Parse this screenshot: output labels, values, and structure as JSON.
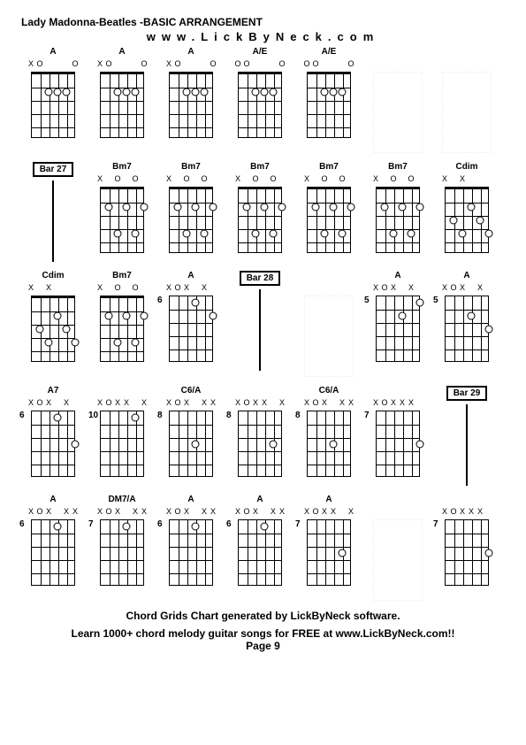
{
  "title": "Lady Madonna-Beatles -BASIC ARRANGEMENT",
  "website": "www.LickByNeck.com",
  "footer1": "Chord Grids Chart generated by LickByNeck software.",
  "footer2": "Learn 1000+ chord melody guitar songs for FREE at www.LickByNeck.com!!",
  "page": "Page 9",
  "cells": [
    {
      "type": "chord",
      "label": "A",
      "openNut": true,
      "fretNum": "",
      "nutMarks": [
        "X",
        "O",
        "",
        "",
        "",
        "O"
      ],
      "dots": [
        [
          2,
          2
        ],
        [
          3,
          2
        ],
        [
          4,
          2
        ]
      ]
    },
    {
      "type": "chord",
      "label": "A",
      "openNut": true,
      "fretNum": "",
      "nutMarks": [
        "X",
        "O",
        "",
        "",
        "",
        "O"
      ],
      "dots": [
        [
          2,
          2
        ],
        [
          3,
          2
        ],
        [
          4,
          2
        ]
      ]
    },
    {
      "type": "chord",
      "label": "A",
      "openNut": true,
      "fretNum": "",
      "nutMarks": [
        "X",
        "O",
        "",
        "",
        "",
        "O"
      ],
      "dots": [
        [
          2,
          2
        ],
        [
          3,
          2
        ],
        [
          4,
          2
        ]
      ]
    },
    {
      "type": "chord",
      "label": "A/E",
      "openNut": true,
      "fretNum": "",
      "nutMarks": [
        "O",
        "O",
        "",
        "",
        "",
        "O"
      ],
      "dots": [
        [
          2,
          2
        ],
        [
          3,
          2
        ],
        [
          4,
          2
        ]
      ]
    },
    {
      "type": "chord",
      "label": "A/E",
      "openNut": true,
      "fretNum": "",
      "nutMarks": [
        "O",
        "O",
        "",
        "",
        "",
        "O"
      ],
      "dots": [
        [
          2,
          2
        ],
        [
          3,
          2
        ],
        [
          4,
          2
        ]
      ]
    },
    {
      "type": "blank"
    },
    {
      "type": "blank"
    },
    {
      "type": "bar",
      "label": "Bar 27"
    },
    {
      "type": "chord",
      "label": "Bm7",
      "openNut": true,
      "fretNum": "",
      "nutMarks": [
        "X",
        "",
        "O",
        "",
        "O",
        ""
      ],
      "dots": [
        [
          1,
          2
        ],
        [
          3,
          2
        ],
        [
          5,
          2
        ],
        [
          2,
          4
        ],
        [
          4,
          4
        ]
      ]
    },
    {
      "type": "chord",
      "label": "Bm7",
      "openNut": true,
      "fretNum": "",
      "nutMarks": [
        "X",
        "",
        "O",
        "",
        "O",
        ""
      ],
      "dots": [
        [
          1,
          2
        ],
        [
          3,
          2
        ],
        [
          5,
          2
        ],
        [
          2,
          4
        ],
        [
          4,
          4
        ]
      ]
    },
    {
      "type": "chord",
      "label": "Bm7",
      "openNut": true,
      "fretNum": "",
      "nutMarks": [
        "X",
        "",
        "O",
        "",
        "O",
        ""
      ],
      "dots": [
        [
          1,
          2
        ],
        [
          3,
          2
        ],
        [
          5,
          2
        ],
        [
          2,
          4
        ],
        [
          4,
          4
        ]
      ]
    },
    {
      "type": "chord",
      "label": "Bm7",
      "openNut": true,
      "fretNum": "",
      "nutMarks": [
        "X",
        "",
        "O",
        "",
        "O",
        ""
      ],
      "dots": [
        [
          1,
          2
        ],
        [
          3,
          2
        ],
        [
          5,
          2
        ],
        [
          2,
          4
        ],
        [
          4,
          4
        ]
      ]
    },
    {
      "type": "chord",
      "label": "Bm7",
      "openNut": true,
      "fretNum": "",
      "nutMarks": [
        "X",
        "",
        "O",
        "",
        "O",
        ""
      ],
      "dots": [
        [
          1,
          2
        ],
        [
          3,
          2
        ],
        [
          5,
          2
        ],
        [
          2,
          4
        ],
        [
          4,
          4
        ]
      ]
    },
    {
      "type": "chord",
      "label": "Cdim",
      "openNut": true,
      "fretNum": "",
      "nutMarks": [
        "X",
        "",
        "X",
        "",
        "",
        ""
      ],
      "dots": [
        [
          1,
          3
        ],
        [
          3,
          2
        ],
        [
          5,
          4
        ],
        [
          2,
          4
        ],
        [
          4,
          3
        ]
      ]
    },
    {
      "type": "chord",
      "label": "Cdim",
      "openNut": true,
      "fretNum": "",
      "nutMarks": [
        "X",
        "",
        "X",
        "",
        "",
        ""
      ],
      "dots": [
        [
          1,
          3
        ],
        [
          3,
          2
        ],
        [
          5,
          4
        ],
        [
          2,
          4
        ],
        [
          4,
          3
        ]
      ]
    },
    {
      "type": "chord",
      "label": "Bm7",
      "openNut": true,
      "fretNum": "",
      "nutMarks": [
        "X",
        "",
        "O",
        "",
        "O",
        ""
      ],
      "dots": [
        [
          1,
          2
        ],
        [
          3,
          2
        ],
        [
          5,
          2
        ],
        [
          2,
          4
        ],
        [
          4,
          4
        ]
      ]
    },
    {
      "type": "chord",
      "label": "A",
      "openNut": false,
      "fretNum": "6",
      "nutMarks": [
        "X",
        "O",
        "X",
        "",
        "X",
        ""
      ],
      "dots": [
        [
          3,
          1
        ],
        [
          5,
          2
        ]
      ]
    },
    {
      "type": "bar",
      "label": "Bar 28"
    },
    {
      "type": "blank"
    },
    {
      "type": "chord",
      "label": "A",
      "openNut": false,
      "fretNum": "5",
      "nutMarks": [
        "X",
        "O",
        "X",
        "",
        "X",
        ""
      ],
      "dots": [
        [
          3,
          2
        ],
        [
          5,
          1
        ]
      ]
    },
    {
      "type": "chord",
      "label": "A",
      "openNut": false,
      "fretNum": "5",
      "nutMarks": [
        "X",
        "O",
        "X",
        "",
        "X",
        ""
      ],
      "dots": [
        [
          3,
          2
        ],
        [
          5,
          3
        ]
      ]
    },
    {
      "type": "chord",
      "label": "A7",
      "openNut": false,
      "fretNum": "6",
      "nutMarks": [
        "X",
        "O",
        "X",
        "",
        "X",
        ""
      ],
      "dots": [
        [
          3,
          1
        ],
        [
          5,
          3
        ]
      ]
    },
    {
      "type": "chord",
      "label": "",
      "openNut": false,
      "fretNum": "10",
      "nutMarks": [
        "X",
        "O",
        "X",
        "X",
        "",
        "X"
      ],
      "dots": [
        [
          4,
          1
        ]
      ]
    },
    {
      "type": "chord",
      "label": "C6/A",
      "openNut": false,
      "fretNum": "8",
      "nutMarks": [
        "X",
        "O",
        "X",
        "",
        "X",
        "X"
      ],
      "dots": [
        [
          3,
          3
        ]
      ]
    },
    {
      "type": "chord",
      "label": "",
      "openNut": false,
      "fretNum": "8",
      "nutMarks": [
        "X",
        "O",
        "X",
        "X",
        "",
        "X"
      ],
      "dots": [
        [
          4,
          3
        ]
      ]
    },
    {
      "type": "chord",
      "label": "C6/A",
      "openNut": false,
      "fretNum": "8",
      "nutMarks": [
        "X",
        "O",
        "X",
        "",
        "X",
        "X"
      ],
      "dots": [
        [
          3,
          3
        ]
      ]
    },
    {
      "type": "chord",
      "label": "",
      "openNut": false,
      "fretNum": "7",
      "nutMarks": [
        "X",
        "O",
        "X",
        "X",
        "X",
        ""
      ],
      "dots": [
        [
          5,
          3
        ]
      ]
    },
    {
      "type": "bar",
      "label": "Bar 29"
    },
    {
      "type": "chord",
      "label": "A",
      "openNut": false,
      "fretNum": "6",
      "nutMarks": [
        "X",
        "O",
        "X",
        "",
        "X",
        "X"
      ],
      "dots": [
        [
          3,
          1
        ]
      ]
    },
    {
      "type": "chord",
      "label": "DM7/A",
      "openNut": false,
      "fretNum": "7",
      "nutMarks": [
        "X",
        "O",
        "X",
        "",
        "X",
        "X"
      ],
      "dots": [
        [
          3,
          1
        ]
      ]
    },
    {
      "type": "chord",
      "label": "A",
      "openNut": false,
      "fretNum": "6",
      "nutMarks": [
        "X",
        "O",
        "X",
        "",
        "X",
        "X"
      ],
      "dots": [
        [
          3,
          1
        ]
      ]
    },
    {
      "type": "chord",
      "label": "A",
      "openNut": false,
      "fretNum": "6",
      "nutMarks": [
        "X",
        "O",
        "X",
        "",
        "X",
        "X"
      ],
      "dots": [
        [
          3,
          1
        ]
      ]
    },
    {
      "type": "chord",
      "label": "A",
      "openNut": false,
      "fretNum": "7",
      "nutMarks": [
        "X",
        "O",
        "X",
        "X",
        "",
        "X"
      ],
      "dots": [
        [
          4,
          3
        ]
      ]
    },
    {
      "type": "blank"
    },
    {
      "type": "chord",
      "label": "",
      "openNut": false,
      "fretNum": "7",
      "nutMarks": [
        "X",
        "O",
        "X",
        "X",
        "X",
        ""
      ],
      "dots": [
        [
          5,
          3
        ]
      ]
    }
  ]
}
